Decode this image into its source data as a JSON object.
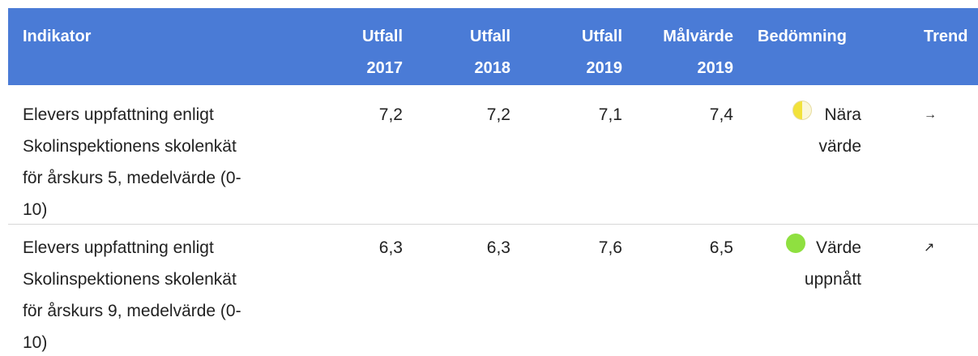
{
  "header": {
    "columns": [
      [
        "Indikator"
      ],
      [
        "Utfall",
        "2017"
      ],
      [
        "Utfall",
        "2018"
      ],
      [
        "Utfall",
        "2019"
      ],
      [
        "Målvärde",
        "2019"
      ],
      [
        "Bedömning"
      ],
      [
        "Trend"
      ]
    ]
  },
  "rows": [
    {
      "indicator": [
        "Elevers uppfattning enligt",
        "Skolinspektionens skolenkät",
        "för årskurs 5, medelvärde (0-",
        "10)"
      ],
      "values": [
        "7,2",
        "7,2",
        "7,1",
        "7,4"
      ],
      "assessment": [
        "Nära",
        "värde"
      ],
      "trend": "→"
    },
    {
      "indicator": [
        "Elevers uppfattning enligt",
        "Skolinspektionens skolenkät",
        "för årskurs 9, medelvärde (0-",
        "10)"
      ],
      "values": [
        "6,3",
        "6,3",
        "7,6",
        "6,5"
      ],
      "assessment": [
        "Värde",
        "uppnått"
      ],
      "trend": "↗"
    }
  ]
}
